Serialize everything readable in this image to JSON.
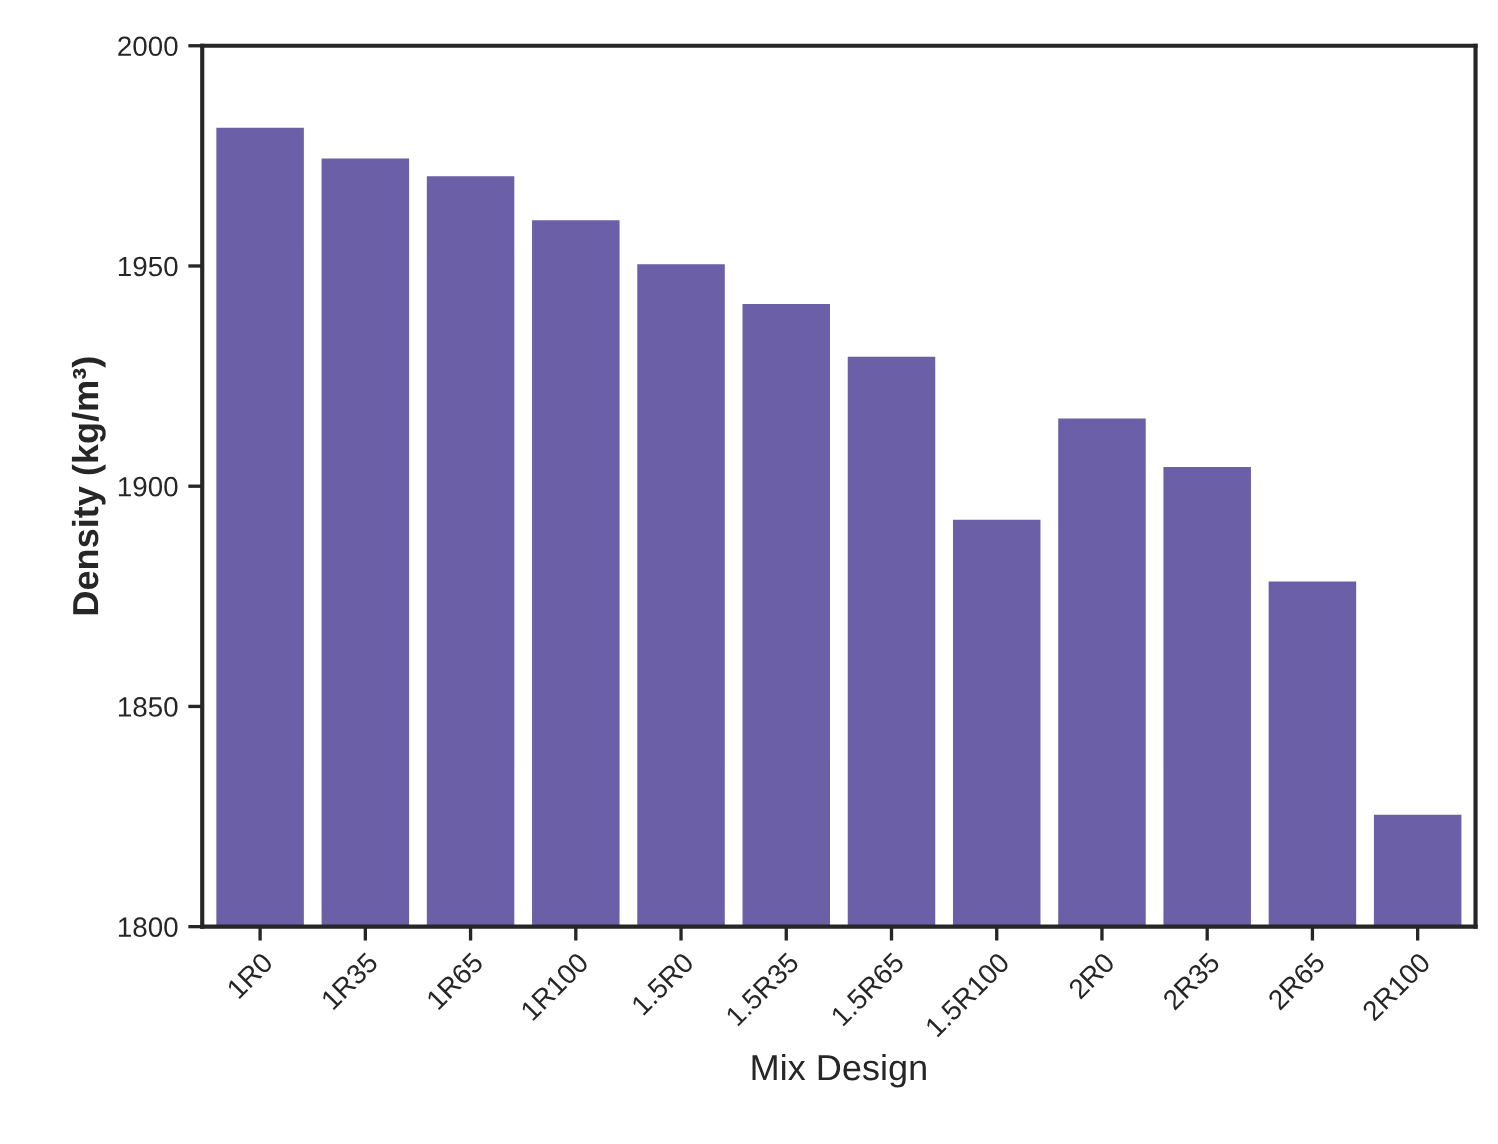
{
  "chart_data": {
    "type": "bar",
    "xlabel": "Mix Design",
    "ylabel": "Density (kg/m³)",
    "categories": [
      "1R0",
      "1R35",
      "1R65",
      "1R100",
      "1.5R0",
      "1.5R35",
      "1.5R65",
      "1.5R100",
      "2R0",
      "2R35",
      "2R65",
      "2R100"
    ],
    "values": [
      1981,
      1974,
      1970,
      1960,
      1950,
      1941,
      1929,
      1892,
      1915,
      1904,
      1878,
      1825
    ],
    "color": "#6b5fa8",
    "ylim": [
      1800,
      2000
    ],
    "yticks": [
      1800,
      1850,
      1900,
      1950,
      2000
    ],
    "grid": false
  }
}
